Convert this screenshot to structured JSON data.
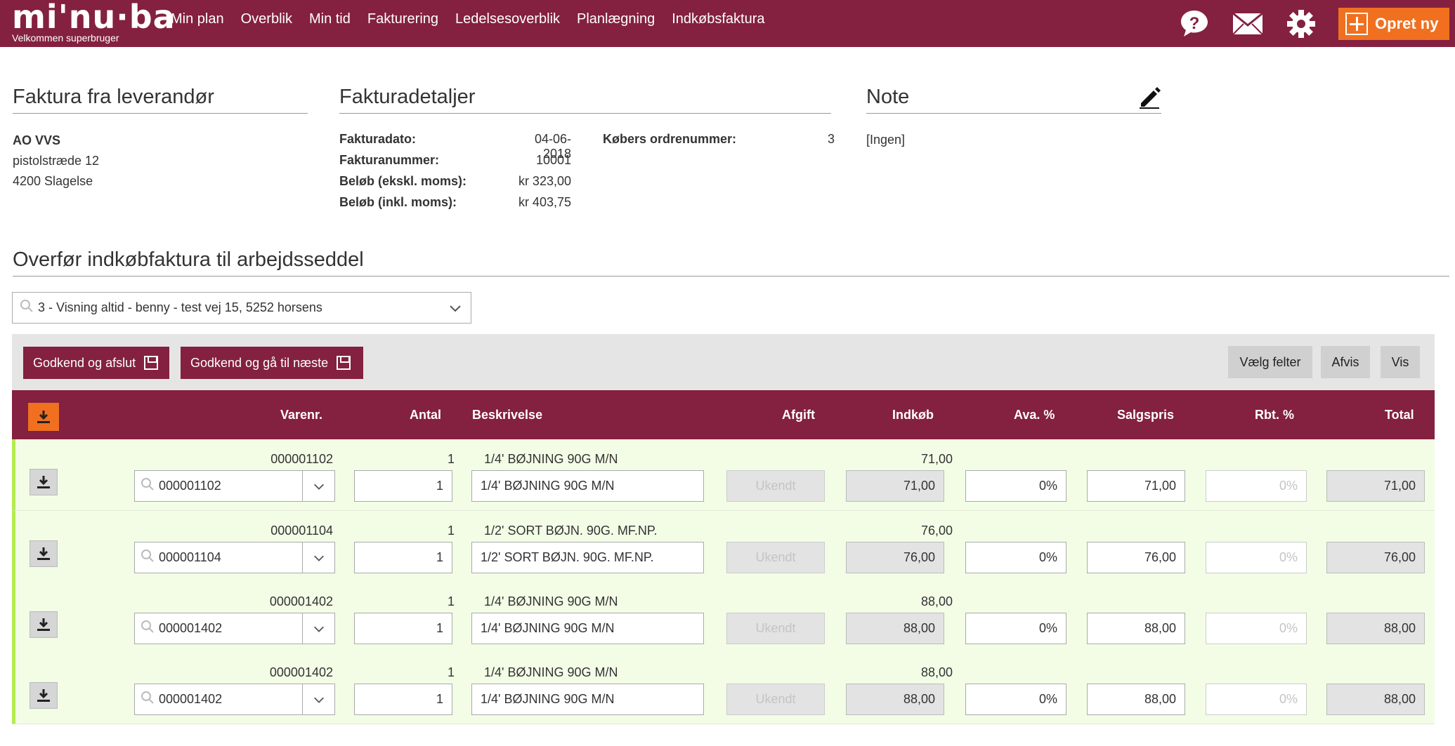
{
  "header": {
    "logo": "mi'nu·ba",
    "welcome": "Velkommen superbruger",
    "nav": [
      "Min plan",
      "Overblik",
      "Min tid",
      "Fakturering",
      "Ledelsesoverblik",
      "Planlægning",
      "Indkøbsfaktura"
    ],
    "create_label": "Opret ny"
  },
  "supplier": {
    "title": "Faktura fra leverandør",
    "name": "AO VVS",
    "street": "pistolstræde 12",
    "city": "4200 Slagelse"
  },
  "details": {
    "title": "Fakturadetaljer",
    "date_label": "Fakturadato:",
    "date": "04-06-2018",
    "number_label": "Fakturanummer:",
    "number": "10001",
    "excl_label": "Beløb (ekskl. moms):",
    "excl": "kr 323,00",
    "incl_label": "Beløb (inkl. moms):",
    "incl": "kr 403,75",
    "order_label": "Købers ordrenummer:",
    "order": "3"
  },
  "note": {
    "title": "Note",
    "value": "[Ingen]"
  },
  "transfer": {
    "title": "Overfør indkøbfaktura til arbejdsseddel",
    "selected": "3 - Visning altid - benny - test vej 15, 5252 horsens"
  },
  "toolbar": {
    "approve_finish": "Godkend og afslut",
    "approve_next": "Godkend og gå til næste",
    "choose_fields": "Vælg felter",
    "reject": "Afvis",
    "show": "Vis"
  },
  "columns": {
    "varenr": "Varenr.",
    "antal": "Antal",
    "beskrivelse": "Beskrivelse",
    "afgift": "Afgift",
    "indkob": "Indkøb",
    "ava": "Ava. %",
    "salgspris": "Salgspris",
    "rbt": "Rbt. %",
    "total": "Total"
  },
  "rows": [
    {
      "varenr": "000001102",
      "antal": "1",
      "beskrivelse": "1/4' BØJNING 90G M/N",
      "indkob": "71,00",
      "afgift": "Ukendt",
      "ava": "0%",
      "salgspris": "71,00",
      "rbt": "0%",
      "total": "71,00"
    },
    {
      "varenr": "000001104",
      "antal": "1",
      "beskrivelse": "1/2' SORT BØJN. 90G. MF.NP.",
      "indkob": "76,00",
      "afgift": "Ukendt",
      "ava": "0%",
      "salgspris": "76,00",
      "rbt": "0%",
      "total": "76,00"
    },
    {
      "varenr": "000001402",
      "antal": "1",
      "beskrivelse": "1/4' BØJNING 90G M/N",
      "indkob": "88,00",
      "afgift": "Ukendt",
      "ava": "0%",
      "salgspris": "88,00",
      "rbt": "0%",
      "total": "88,00"
    },
    {
      "varenr": "000001402",
      "antal": "1",
      "beskrivelse": "1/4' BØJNING 90G M/N",
      "indkob": "88,00",
      "afgift": "Ukendt",
      "ava": "0%",
      "salgspris": "88,00",
      "rbt": "0%",
      "total": "88,00"
    }
  ],
  "colors": {
    "brand": "#842040",
    "accent": "#f07020",
    "row_bg": "#f3fde6",
    "row_marker": "#b4ec50"
  }
}
